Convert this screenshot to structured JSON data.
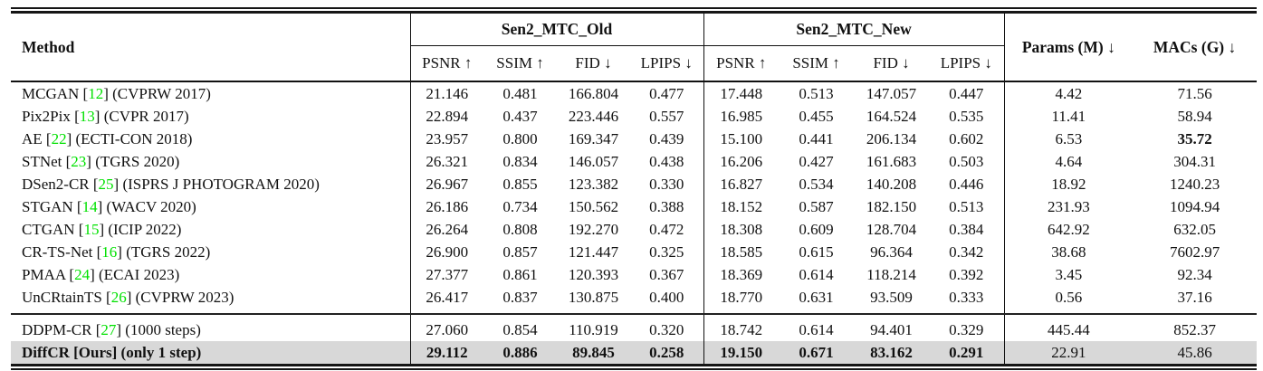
{
  "table": {
    "colors": {
      "highlight": "#d8d8d8",
      "citation": "#00e100",
      "rule": "#151515"
    },
    "header": {
      "method": "Method",
      "group_old": "Sen2_MTC_Old",
      "group_new": "Sen2_MTC_New",
      "params": "Params (M) ↓",
      "macs": "MACs (G) ↓",
      "metrics": [
        "PSNR ↑",
        "SSIM ↑",
        "FID ↓",
        "LPIPS ↓"
      ]
    },
    "groups": [
      {
        "rows": [
          {
            "name": "MCGAN",
            "cite": "12",
            "cite_green": true,
            "venue": "(CVPRW 2017)",
            "old": [
              "21.146",
              "0.481",
              "166.804",
              "0.477"
            ],
            "new": [
              "17.448",
              "0.513",
              "147.057",
              "0.447"
            ],
            "params": "4.42",
            "macs": "71.56"
          },
          {
            "name": "Pix2Pix",
            "cite": "13",
            "cite_green": true,
            "venue": "(CVPR 2017)",
            "old": [
              "22.894",
              "0.437",
              "223.446",
              "0.557"
            ],
            "new": [
              "16.985",
              "0.455",
              "164.524",
              "0.535"
            ],
            "params": "11.41",
            "macs": "58.94"
          },
          {
            "name": "AE",
            "cite": "22",
            "cite_green": true,
            "venue": "(ECTI-CON 2018)",
            "old": [
              "23.957",
              "0.800",
              "169.347",
              "0.439"
            ],
            "new": [
              "15.100",
              "0.441",
              "206.134",
              "0.602"
            ],
            "params": "6.53",
            "macs": "35.72",
            "bold_macs": true
          },
          {
            "name": "STNet",
            "cite": "23",
            "cite_green": true,
            "venue": "(TGRS 2020)",
            "old": [
              "26.321",
              "0.834",
              "146.057",
              "0.438"
            ],
            "new": [
              "16.206",
              "0.427",
              "161.683",
              "0.503"
            ],
            "params": "4.64",
            "macs": "304.31"
          },
          {
            "name": "DSen2-CR",
            "cite": "25",
            "cite_green": true,
            "venue": "(ISPRS J PHOTOGRAM 2020)",
            "old": [
              "26.967",
              "0.855",
              "123.382",
              "0.330"
            ],
            "new": [
              "16.827",
              "0.534",
              "140.208",
              "0.446"
            ],
            "params": "18.92",
            "macs": "1240.23"
          },
          {
            "name": "STGAN",
            "cite": "14",
            "cite_green": true,
            "venue": "(WACV 2020)",
            "old": [
              "26.186",
              "0.734",
              "150.562",
              "0.388"
            ],
            "new": [
              "18.152",
              "0.587",
              "182.150",
              "0.513"
            ],
            "params": "231.93",
            "macs": "1094.94"
          },
          {
            "name": "CTGAN",
            "cite": "15",
            "cite_green": true,
            "venue": "(ICIP 2022)",
            "old": [
              "26.264",
              "0.808",
              "192.270",
              "0.472"
            ],
            "new": [
              "18.308",
              "0.609",
              "128.704",
              "0.384"
            ],
            "params": "642.92",
            "macs": "632.05"
          },
          {
            "name": "CR-TS-Net",
            "cite": "16",
            "cite_green": true,
            "venue": "(TGRS 2022)",
            "old": [
              "26.900",
              "0.857",
              "121.447",
              "0.325"
            ],
            "new": [
              "18.585",
              "0.615",
              "96.364",
              "0.342"
            ],
            "params": "38.68",
            "macs": "7602.97"
          },
          {
            "name": "PMAA",
            "cite": "24",
            "cite_green": true,
            "venue": "(ECAI 2023)",
            "old": [
              "27.377",
              "0.861",
              "120.393",
              "0.367"
            ],
            "new": [
              "18.369",
              "0.614",
              "118.214",
              "0.392"
            ],
            "params": "3.45",
            "macs": "92.34"
          },
          {
            "name": "UnCRtainTS",
            "cite": "26",
            "cite_green": true,
            "venue": "(CVPRW 2023)",
            "old": [
              "26.417",
              "0.837",
              "130.875",
              "0.400"
            ],
            "new": [
              "18.770",
              "0.631",
              "93.509",
              "0.333"
            ],
            "params": "0.56",
            "macs": "37.16"
          }
        ]
      },
      {
        "rows": [
          {
            "name": "DDPM-CR",
            "cite": "27",
            "cite_green": true,
            "venue": "(1000 steps)",
            "old": [
              "27.060",
              "0.854",
              "110.919",
              "0.320"
            ],
            "new": [
              "18.742",
              "0.614",
              "94.401",
              "0.329"
            ],
            "params": "445.44",
            "macs": "852.37"
          },
          {
            "name": "DiffCR",
            "cite": "Ours",
            "cite_green": false,
            "venue": "(only 1 step)",
            "old": [
              "29.112",
              "0.886",
              "89.845",
              "0.258"
            ],
            "new": [
              "19.150",
              "0.671",
              "83.162",
              "0.291"
            ],
            "params": "22.91",
            "macs": "45.86",
            "highlight": true,
            "bold_method": true,
            "bold_metrics": true
          }
        ]
      }
    ]
  }
}
